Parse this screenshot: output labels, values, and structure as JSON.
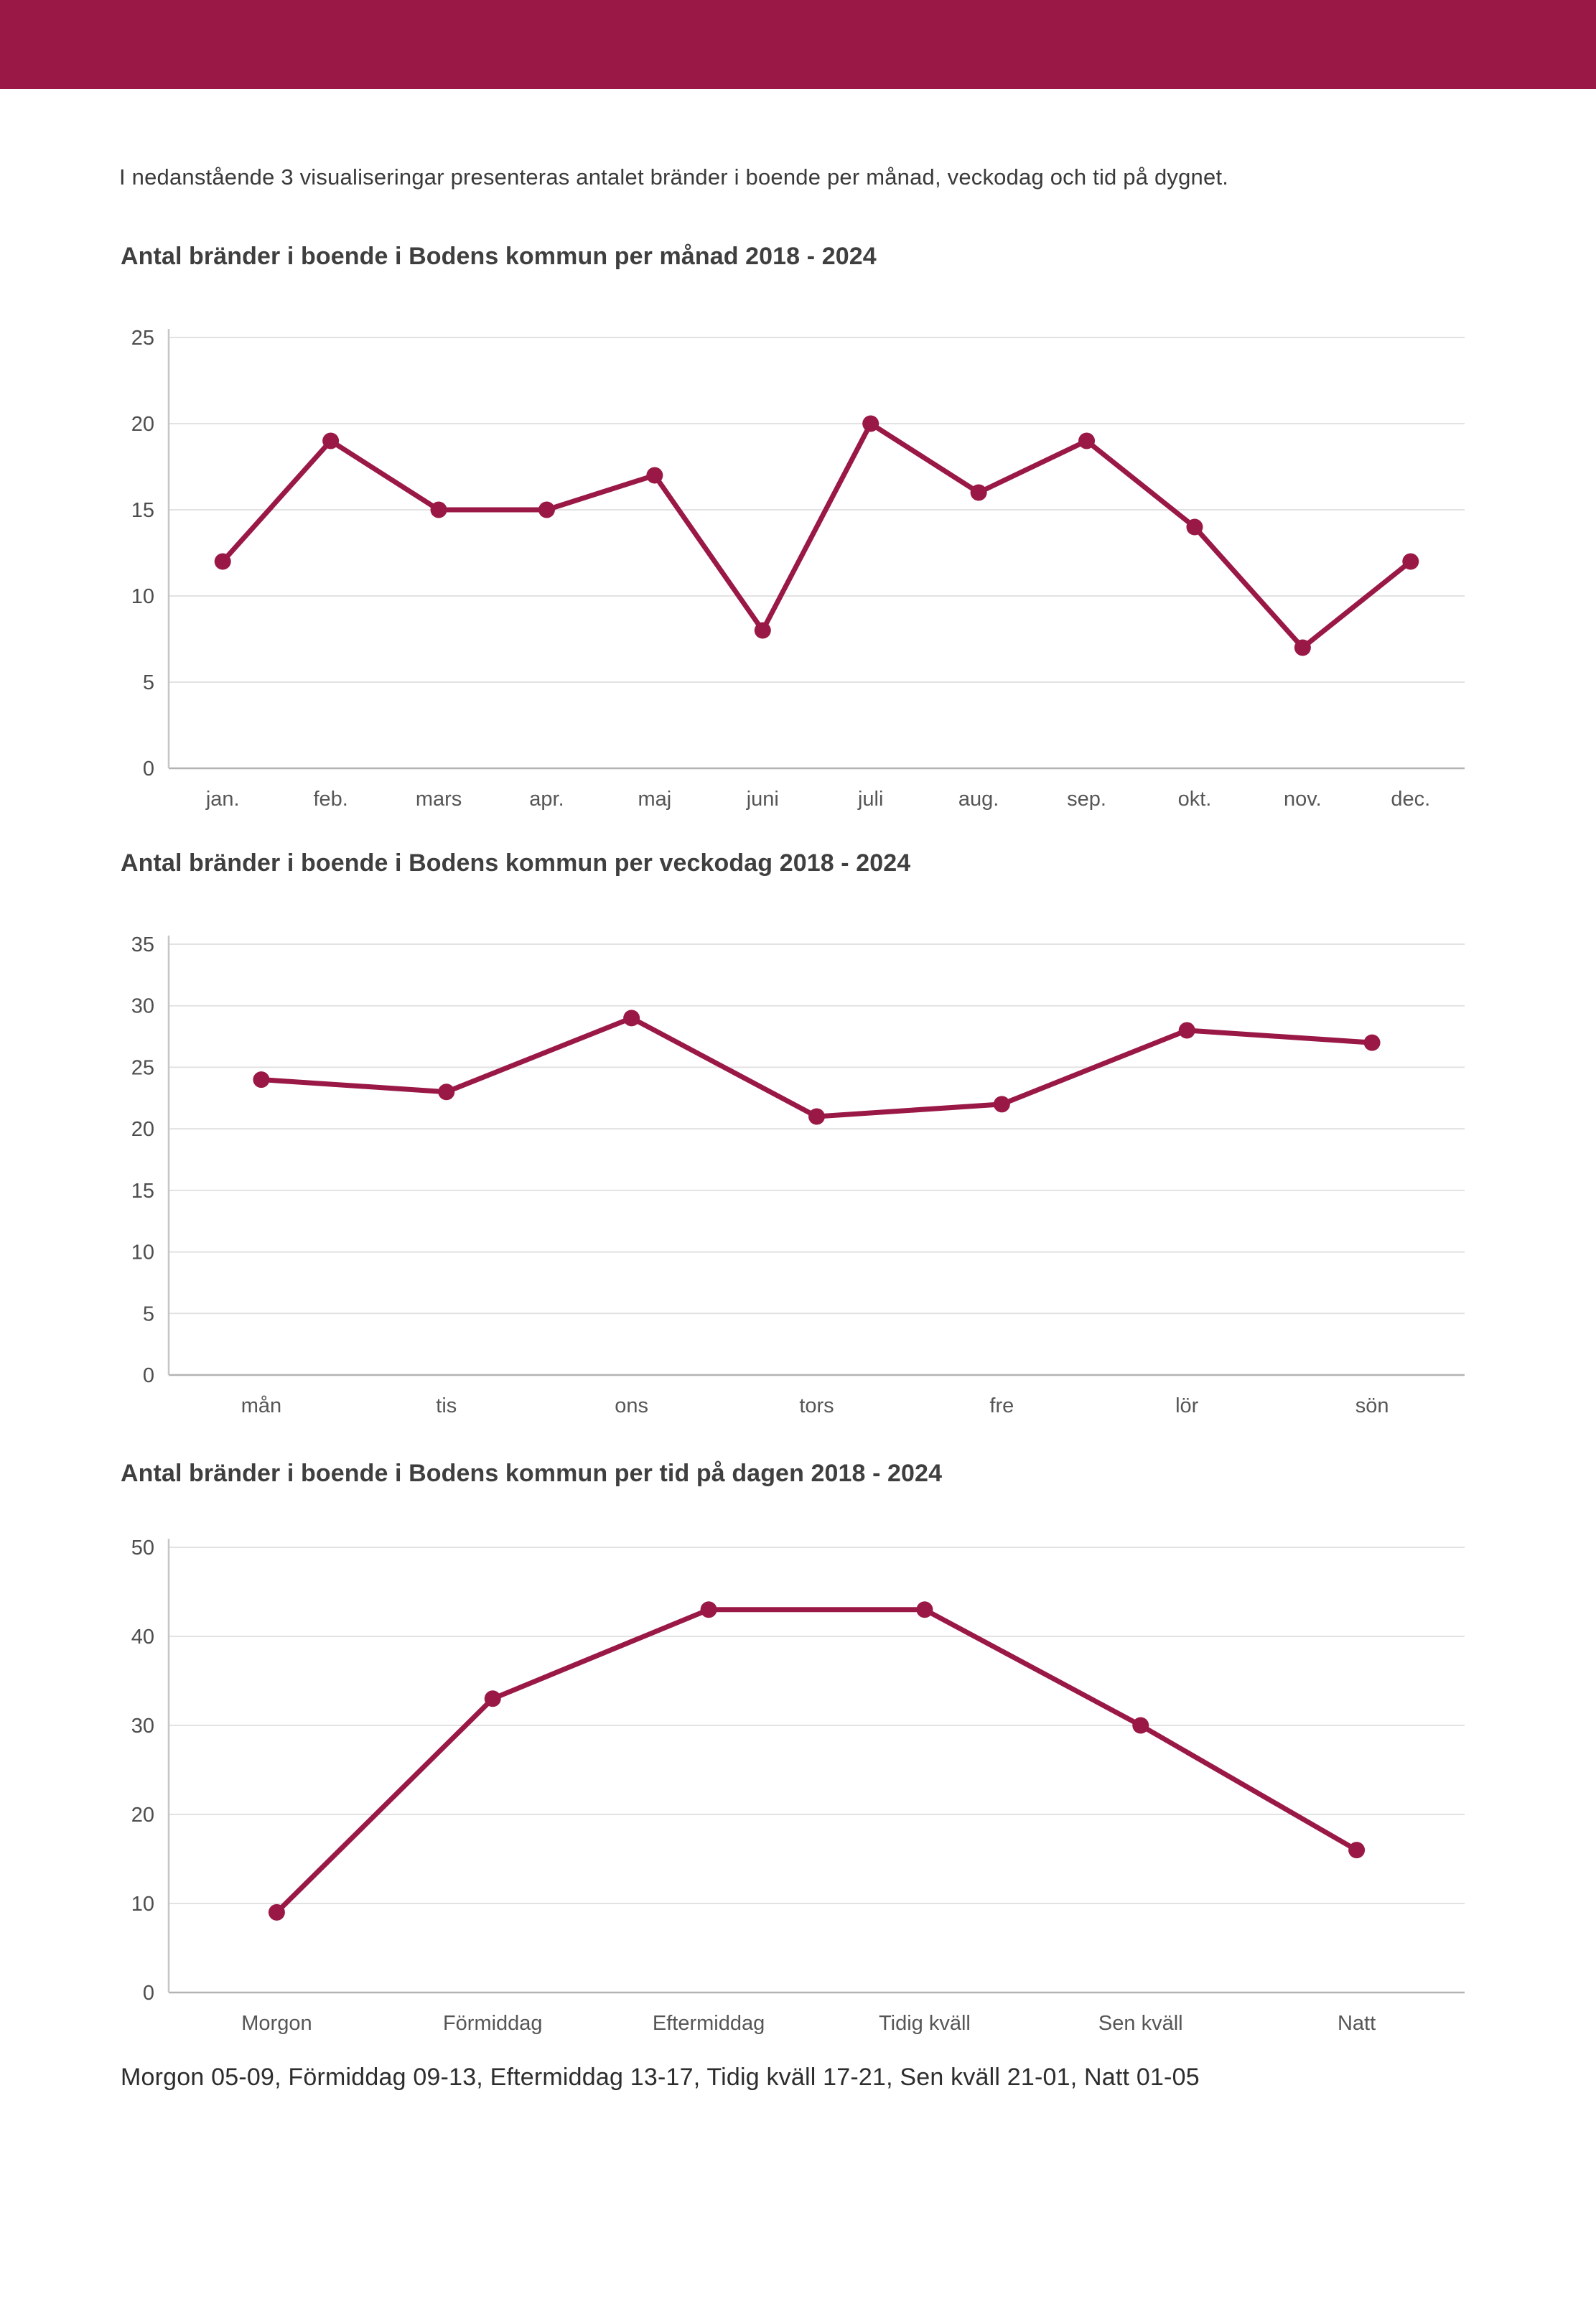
{
  "page": {
    "background": "#ffffff"
  },
  "header_bar": {
    "color": "#9a1845"
  },
  "intro_text": "I nedanstående 3 visualiseringar presenteras antalet bränder i boende per månad, veckodag och tid på dygnet.",
  "footnote_text": "Morgon 05-09, Förmiddag 09-13, Eftermiddag 13-17, Tidig kväll 17-21, Sen kväll 21-01, Natt 01-05",
  "style": {
    "line_color": "#9a1845",
    "grid_color": "#e2e2e2",
    "axis_color": "#b3b3b3",
    "yaxis_line_color": "#c6c6c6",
    "ytick_text_color": "#4d4d4d",
    "xtick_text_color": "#565656"
  },
  "chart_data": [
    {
      "type": "line",
      "title": "Antal bränder i boende i Bodens kommun per månad 2018 - 2024",
      "categories": [
        "jan.",
        "feb.",
        "mars",
        "apr.",
        "maj",
        "juni",
        "juli",
        "aug.",
        "sep.",
        "okt.",
        "nov.",
        "dec."
      ],
      "values": [
        12,
        19,
        15,
        15,
        17,
        8,
        20,
        16,
        19,
        14,
        7,
        12
      ],
      "xlabel": "",
      "ylabel": "",
      "ylim": [
        0,
        25
      ],
      "yticks": [
        0,
        5,
        10,
        15,
        20,
        25
      ],
      "grid": "horizontal",
      "legend": "none",
      "marker": "circle"
    },
    {
      "type": "line",
      "title": "Antal bränder i boende i Bodens kommun per veckodag 2018 - 2024",
      "categories": [
        "mån",
        "tis",
        "ons",
        "tors",
        "fre",
        "lör",
        "sön"
      ],
      "values": [
        24,
        23,
        29,
        21,
        22,
        28,
        27
      ],
      "xlabel": "",
      "ylabel": "",
      "ylim": [
        0,
        35
      ],
      "yticks": [
        0,
        5,
        10,
        15,
        20,
        25,
        30,
        35
      ],
      "grid": "horizontal",
      "legend": "none",
      "marker": "circle"
    },
    {
      "type": "line",
      "title": "Antal bränder i boende i Bodens kommun per tid på dagen 2018 - 2024",
      "categories": [
        "Morgon",
        "Förmiddag",
        "Eftermiddag",
        "Tidig kväll",
        "Sen kväll",
        "Natt"
      ],
      "values": [
        9,
        33,
        43,
        43,
        30,
        16
      ],
      "xlabel": "",
      "ylabel": "",
      "ylim": [
        0,
        50
      ],
      "yticks": [
        0,
        10,
        20,
        30,
        40,
        50
      ],
      "grid": "horizontal",
      "legend": "none",
      "marker": "circle"
    }
  ]
}
